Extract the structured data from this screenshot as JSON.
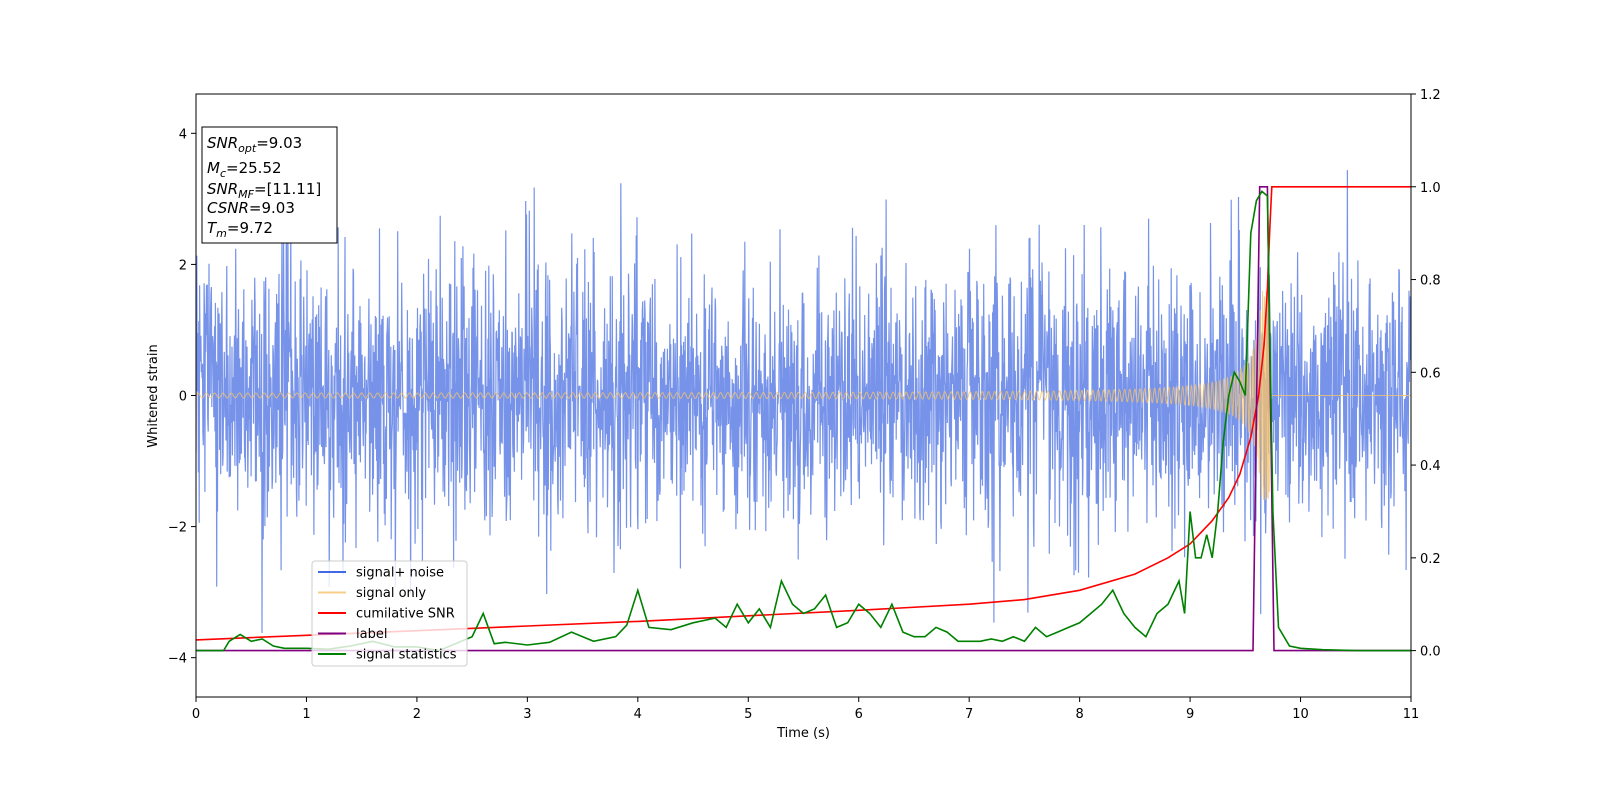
{
  "chart_data": {
    "type": "line",
    "xlabel": "Time (s)",
    "ylabel": "Whitened strain",
    "xlim": [
      0,
      11
    ],
    "ylim_left": [
      -4.6,
      4.6
    ],
    "ylim_right": [
      -0.1,
      1.2
    ],
    "x_ticks": [
      0,
      1,
      2,
      3,
      4,
      5,
      6,
      7,
      8,
      9,
      10,
      11
    ],
    "y_ticks_left": [
      -4,
      -2,
      0,
      2,
      4
    ],
    "y_ticks_right": [
      0.0,
      0.2,
      0.4,
      0.6,
      0.8,
      1.0,
      1.2
    ],
    "y_ticks_right_labels": [
      "0.0",
      "0.2",
      "0.4",
      "0.6",
      "0.8",
      "1.0",
      "1.2"
    ],
    "grid": false,
    "legend": "lower-left",
    "annotation": {
      "lines": [
        {
          "main": "SNR",
          "sub": "opt",
          "rest": "=9.03"
        },
        {
          "main": "M",
          "sub": "c",
          "rest": "=25.52"
        },
        {
          "main": "SNR",
          "sub": "MF",
          "rest": "=[11.11]"
        },
        {
          "main": "CSNR",
          "sub": "",
          "rest": "=9.03"
        },
        {
          "main": "T",
          "sub": "m",
          "rest": "=9.72"
        }
      ]
    },
    "series": [
      {
        "name": "signal+ noise",
        "axis": "left",
        "color": "#4169e1",
        "description": "noise band",
        "noise_std": 1.0,
        "samples": 3000,
        "x_range": [
          0,
          11
        ]
      },
      {
        "name": "signal only",
        "axis": "left",
        "color": "#f5c26b",
        "chirp": {
          "t_merge": 9.72,
          "amp_at_merge": 1.6,
          "amp_start": 0.03
        }
      },
      {
        "name": "cumilative SNR",
        "axis": "right",
        "color": "#ff0000",
        "x": [
          0,
          1,
          2,
          3,
          4,
          5,
          6,
          7,
          7.5,
          8,
          8.5,
          8.8,
          9.0,
          9.2,
          9.35,
          9.45,
          9.55,
          9.62,
          9.67,
          9.7,
          9.72,
          9.74,
          11
        ],
        "values": [
          0.023,
          0.033,
          0.043,
          0.053,
          0.063,
          0.075,
          0.087,
          0.1,
          0.11,
          0.13,
          0.165,
          0.2,
          0.23,
          0.28,
          0.33,
          0.38,
          0.46,
          0.55,
          0.66,
          0.78,
          0.9,
          1.0,
          1.0
        ]
      },
      {
        "name": "label",
        "axis": "right",
        "color": "#800080",
        "x": [
          0,
          9.57,
          9.63,
          9.7,
          9.76,
          11
        ],
        "values": [
          0.0,
          0.0,
          1.0,
          1.0,
          0.0,
          0.0
        ]
      },
      {
        "name": "signal statistics",
        "axis": "right",
        "color": "#008000",
        "x": [
          0,
          0.25,
          0.3,
          0.4,
          0.5,
          0.6,
          0.7,
          0.8,
          1.0,
          1.2,
          1.4,
          1.6,
          1.8,
          2.0,
          2.2,
          2.4,
          2.5,
          2.6,
          2.7,
          2.8,
          3.0,
          3.2,
          3.4,
          3.6,
          3.8,
          3.9,
          4.0,
          4.1,
          4.3,
          4.5,
          4.7,
          4.8,
          4.9,
          5.0,
          5.1,
          5.2,
          5.3,
          5.4,
          5.5,
          5.6,
          5.7,
          5.8,
          5.9,
          6.0,
          6.1,
          6.2,
          6.3,
          6.4,
          6.5,
          6.6,
          6.7,
          6.8,
          6.9,
          7.0,
          7.1,
          7.2,
          7.3,
          7.4,
          7.5,
          7.6,
          7.7,
          7.8,
          7.9,
          8.0,
          8.1,
          8.2,
          8.3,
          8.4,
          8.5,
          8.6,
          8.7,
          8.8,
          8.9,
          8.95,
          9.0,
          9.05,
          9.1,
          9.15,
          9.2,
          9.25,
          9.3,
          9.35,
          9.4,
          9.45,
          9.5,
          9.55,
          9.6,
          9.65,
          9.7,
          9.75,
          9.8,
          9.9,
          10.0,
          10.2,
          10.5,
          11
        ],
        "values": [
          0.0,
          0.0,
          0.02,
          0.035,
          0.02,
          0.025,
          0.01,
          0.005,
          0.005,
          0.003,
          0.01,
          0.02,
          0.008,
          0.008,
          0.0,
          0.02,
          0.03,
          0.08,
          0.015,
          0.018,
          0.012,
          0.018,
          0.04,
          0.02,
          0.03,
          0.055,
          0.13,
          0.05,
          0.045,
          0.06,
          0.07,
          0.05,
          0.1,
          0.06,
          0.09,
          0.05,
          0.15,
          0.1,
          0.08,
          0.09,
          0.12,
          0.05,
          0.06,
          0.1,
          0.08,
          0.05,
          0.1,
          0.04,
          0.03,
          0.03,
          0.05,
          0.04,
          0.02,
          0.02,
          0.02,
          0.025,
          0.02,
          0.03,
          0.02,
          0.05,
          0.03,
          0.04,
          0.05,
          0.06,
          0.08,
          0.1,
          0.13,
          0.08,
          0.05,
          0.03,
          0.08,
          0.1,
          0.15,
          0.08,
          0.3,
          0.2,
          0.2,
          0.25,
          0.2,
          0.3,
          0.45,
          0.55,
          0.6,
          0.58,
          0.55,
          0.9,
          0.97,
          0.99,
          0.98,
          0.3,
          0.05,
          0.01,
          0.005,
          0.002,
          0.0,
          0.0
        ]
      }
    ]
  }
}
